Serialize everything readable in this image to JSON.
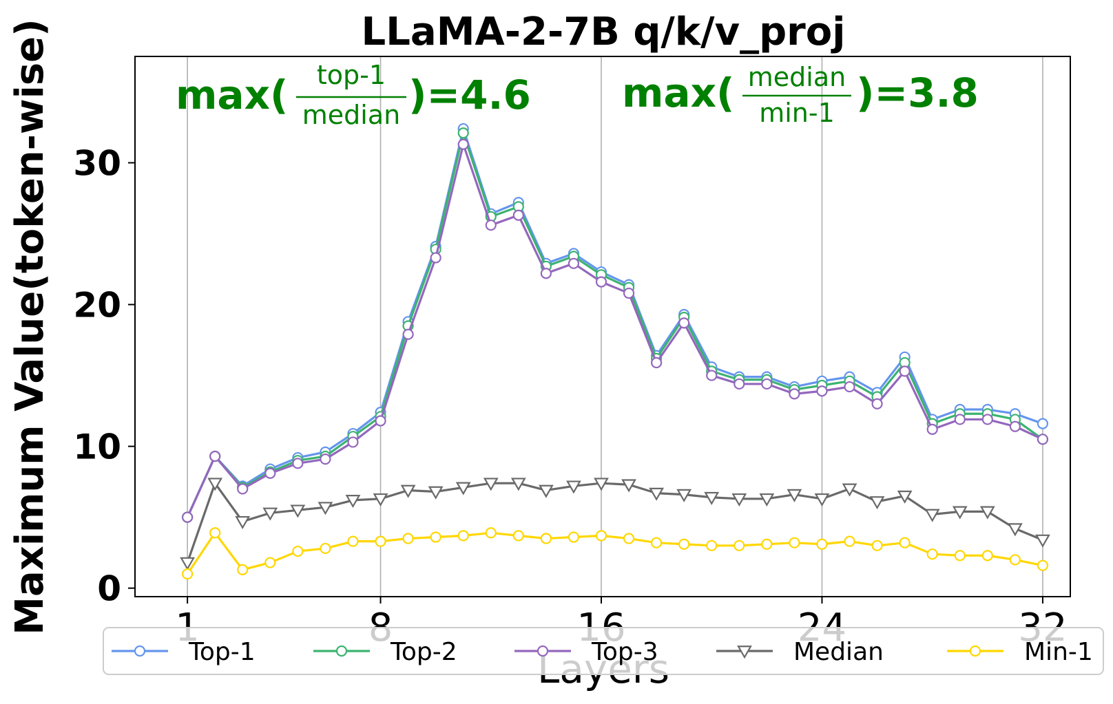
{
  "chart_data": {
    "type": "line",
    "title": "LLaMA-2-7B q/k/v_proj",
    "xlabel": "Layers",
    "ylabel": "Maximum Value(token-wise)",
    "xlim": [
      -0.9,
      33.0
    ],
    "ylim": [
      -0.6,
      37.5
    ],
    "xticks": [
      1,
      8,
      16,
      24,
      32
    ],
    "xtick_labels": [
      "1",
      "8",
      "16",
      "24",
      "32"
    ],
    "yticks": [
      0,
      10,
      20,
      30
    ],
    "ytick_labels": [
      "0",
      "10",
      "20",
      "30"
    ],
    "grid": "vertical",
    "legend_position": "bottom",
    "x": [
      1,
      2,
      3,
      4,
      5,
      6,
      7,
      8,
      9,
      10,
      11,
      12,
      13,
      14,
      15,
      16,
      17,
      18,
      19,
      20,
      21,
      22,
      23,
      24,
      25,
      26,
      27,
      28,
      29,
      30,
      31,
      32
    ],
    "series": [
      {
        "name": "Top-1",
        "color": "#6495ED",
        "marker": "circle",
        "values": [
          5.0,
          9.3,
          7.2,
          8.4,
          9.2,
          9.6,
          10.9,
          12.4,
          18.8,
          24.1,
          32.4,
          26.4,
          27.2,
          22.9,
          23.6,
          22.3,
          21.4,
          16.4,
          19.3,
          15.6,
          14.9,
          14.9,
          14.2,
          14.6,
          14.9,
          13.8,
          16.3,
          11.9,
          12.6,
          12.6,
          12.3,
          11.6
        ]
      },
      {
        "name": "Top-2",
        "color": "#3CB371",
        "marker": "circle",
        "values": [
          5.0,
          9.3,
          7.1,
          8.2,
          9.0,
          9.3,
          10.7,
          12.1,
          18.5,
          23.9,
          32.1,
          26.2,
          26.9,
          22.7,
          23.4,
          22.1,
          21.2,
          16.2,
          19.1,
          15.3,
          14.7,
          14.7,
          14.0,
          14.3,
          14.6,
          13.5,
          15.9,
          11.6,
          12.3,
          12.3,
          11.9,
          10.5
        ]
      },
      {
        "name": "Top-3",
        "color": "#9467BD",
        "marker": "circle",
        "values": [
          5.0,
          9.3,
          7.0,
          8.1,
          8.8,
          9.1,
          10.3,
          11.8,
          17.9,
          23.3,
          31.3,
          25.6,
          26.3,
          22.2,
          22.9,
          21.6,
          20.8,
          15.9,
          18.7,
          15.0,
          14.4,
          14.4,
          13.7,
          13.9,
          14.2,
          13.0,
          15.3,
          11.2,
          11.9,
          11.9,
          11.4,
          10.5
        ]
      },
      {
        "name": "Median",
        "color": "#696969",
        "marker": "triangle-down",
        "values": [
          1.8,
          7.4,
          4.7,
          5.3,
          5.5,
          5.7,
          6.2,
          6.3,
          6.9,
          6.8,
          7.1,
          7.4,
          7.4,
          6.9,
          7.2,
          7.4,
          7.3,
          6.7,
          6.6,
          6.4,
          6.3,
          6.3,
          6.6,
          6.3,
          7.0,
          6.1,
          6.5,
          5.2,
          5.4,
          5.4,
          4.2,
          3.4
        ]
      },
      {
        "name": "Min-1",
        "color": "#FFD700",
        "marker": "circle",
        "values": [
          1.0,
          3.9,
          1.3,
          1.8,
          2.6,
          2.8,
          3.3,
          3.3,
          3.5,
          3.6,
          3.7,
          3.9,
          3.7,
          3.5,
          3.6,
          3.7,
          3.5,
          3.2,
          3.1,
          3.0,
          3.0,
          3.1,
          3.2,
          3.1,
          3.3,
          3.0,
          3.2,
          2.4,
          2.3,
          2.3,
          2.0,
          1.6
        ]
      }
    ],
    "annotations": [
      {
        "prefix": "max(",
        "numerator": "top-1",
        "denominator": "median",
        "suffix": ")=4.6",
        "color": "#008000"
      },
      {
        "prefix": "max(",
        "numerator": "median",
        "denominator": "min-1",
        "suffix": ")=3.8",
        "color": "#008000"
      }
    ]
  }
}
